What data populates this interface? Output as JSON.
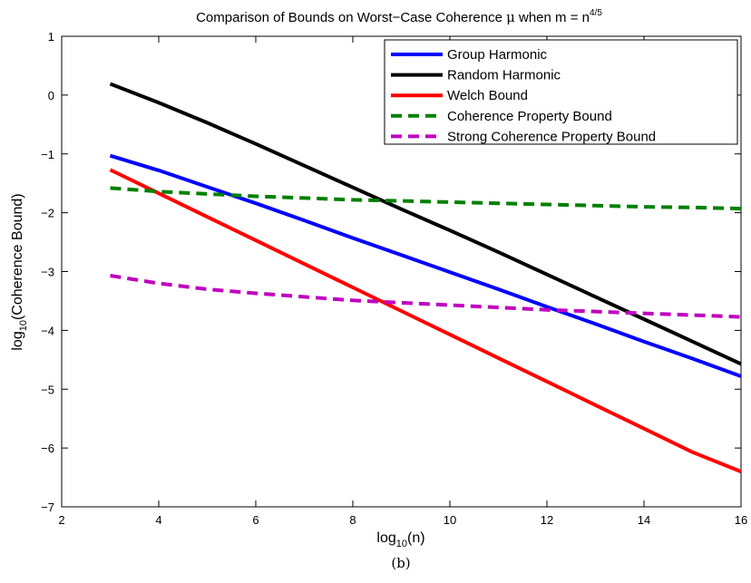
{
  "caption": "(b)",
  "chart_data": {
    "type": "line",
    "title": {
      "prefix": "Comparison of Bounds on Worst−Case Coherence ",
      "mu": "μ",
      "middle": " when m = n",
      "exponent": "4/5"
    },
    "xlabel": {
      "pre": "log",
      "sub": "10",
      "post": "(n)"
    },
    "ylabel": {
      "pre": "log",
      "sub": "10",
      "post": "(Coherence Bound)"
    },
    "xlim": [
      2,
      16
    ],
    "ylim": [
      -7,
      1
    ],
    "xticks": [
      2,
      4,
      6,
      8,
      10,
      12,
      14,
      16
    ],
    "yticks": [
      -7,
      -6,
      -5,
      -4,
      -3,
      -2,
      -1,
      0,
      1
    ],
    "xtick_labels": [
      "2",
      "4",
      "6",
      "8",
      "10",
      "12",
      "14",
      "16"
    ],
    "ytick_labels": [
      "−7",
      "−6",
      "−5",
      "−4",
      "−3",
      "−2",
      "−1",
      "0",
      "1"
    ],
    "grid": false,
    "legend_position": "top-right",
    "series": [
      {
        "name": "Group Harmonic",
        "color": "#0000ff",
        "dash": "solid",
        "x": [
          3,
          4,
          5,
          6,
          7,
          8,
          9,
          10,
          11,
          12,
          13,
          14,
          15,
          16
        ],
        "y": [
          -1.03,
          -1.28,
          -1.56,
          -1.84,
          -2.13,
          -2.43,
          -2.72,
          -3.01,
          -3.3,
          -3.6,
          -3.89,
          -4.19,
          -4.48,
          -4.78
        ]
      },
      {
        "name": "Random Harmonic",
        "color": "#000000",
        "dash": "solid",
        "x": [
          3,
          4,
          5,
          6,
          7,
          8,
          9,
          10,
          11,
          12,
          13,
          14,
          15,
          16
        ],
        "y": [
          0.19,
          -0.13,
          -0.47,
          -0.83,
          -1.2,
          -1.57,
          -1.94,
          -2.3,
          -2.67,
          -3.05,
          -3.43,
          -3.81,
          -4.19,
          -4.57
        ]
      },
      {
        "name": "Welch Bound",
        "color": "#ff0000",
        "dash": "solid",
        "x": [
          3,
          4,
          5,
          6,
          7,
          8,
          9,
          10,
          11,
          12,
          13,
          14,
          15,
          16
        ],
        "y": [
          -1.27,
          -1.67,
          -2.07,
          -2.47,
          -2.87,
          -3.27,
          -3.67,
          -4.07,
          -4.47,
          -4.87,
          -5.27,
          -5.67,
          -6.07,
          -6.4
        ]
      },
      {
        "name": "Coherence Property Bound",
        "color": "#008000",
        "dash": "dashed",
        "x": [
          3,
          4,
          5,
          6,
          7,
          8,
          9,
          10,
          11,
          12,
          13,
          14,
          15,
          16
        ],
        "y": [
          -1.58,
          -1.64,
          -1.68,
          -1.72,
          -1.75,
          -1.78,
          -1.8,
          -1.82,
          -1.84,
          -1.86,
          -1.88,
          -1.9,
          -1.91,
          -1.93
        ]
      },
      {
        "name": "Strong Coherence Property Bound",
        "color": "#bf00bf",
        "dash": "dashed",
        "x": [
          3,
          4,
          5,
          6,
          7,
          8,
          9,
          10,
          11,
          12,
          13,
          14,
          15,
          16
        ],
        "y": [
          -3.07,
          -3.2,
          -3.3,
          -3.37,
          -3.43,
          -3.49,
          -3.53,
          -3.57,
          -3.61,
          -3.65,
          -3.68,
          -3.71,
          -3.74,
          -3.77
        ]
      }
    ]
  }
}
